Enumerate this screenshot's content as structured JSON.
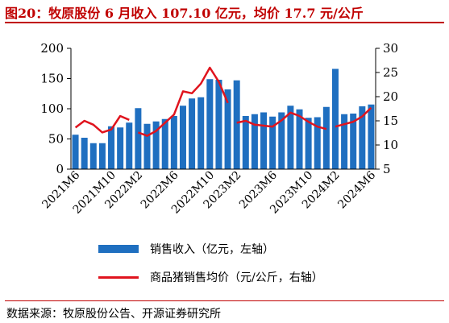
{
  "figure": {
    "title": "图20：牧原股份 6 月收入 107.10 亿元，均价 17.7 元/公斤",
    "source": "数据来源：牧原股份公告、开源证券研究所"
  },
  "chart_data": {
    "type": "bar+line",
    "x": [
      "2021M6",
      "2021M7",
      "2021M8",
      "2021M9",
      "2021M10",
      "2021M11",
      "2021M12",
      "2022M2",
      "2022M3",
      "2022M4",
      "2022M5",
      "2022M6",
      "2022M7",
      "2022M8",
      "2022M9",
      "2022M10",
      "2022M11",
      "2022M12",
      "2023M2",
      "2023M3",
      "2023M4",
      "2023M5",
      "2023M6",
      "2023M7",
      "2023M8",
      "2023M9",
      "2023M10",
      "2023M11",
      "2023M12",
      "2024M2",
      "2024M3",
      "2024M4",
      "2024M5",
      "2024M6"
    ],
    "xtick_labels": [
      "2021M6",
      "2021M10",
      "2022M2",
      "2022M6",
      "2022M10",
      "2023M2",
      "2023M6",
      "2023M10",
      "2024M2",
      "2024M6"
    ],
    "series": [
      {
        "name": "销售收入（亿元，左轴）",
        "type": "bar",
        "axis": "left",
        "color": "#1f6fc0",
        "values": [
          57,
          52,
          43,
          43,
          71,
          69,
          77,
          101,
          75,
          79,
          83,
          88,
          105,
          117,
          119,
          149,
          148,
          132,
          147,
          88,
          91,
          94,
          87,
          94,
          105,
          99,
          85,
          86,
          103,
          166,
          91,
          92,
          104,
          107
        ]
      },
      {
        "name": "商品猪销售均价（元/公斤，右轴）",
        "type": "line",
        "axis": "right",
        "color": "#e0141e",
        "values": [
          13.6,
          15.0,
          14.2,
          12.6,
          13.2,
          16.0,
          15.2,
          12.6,
          11.9,
          12.9,
          14.6,
          16.3,
          21.1,
          20.7,
          22.7,
          26.0,
          23.1,
          18.7,
          14.6,
          15.0,
          14.2,
          14.0,
          13.8,
          15.1,
          16.7,
          16.0,
          14.8,
          13.8,
          13.3,
          13.8,
          14.3,
          14.8,
          15.9,
          17.7
        ]
      }
    ],
    "ylim_left": [
      0,
      200
    ],
    "yticks_left": [
      0,
      50,
      100,
      150,
      200
    ],
    "ylim_right": [
      5,
      30
    ],
    "yticks_right": [
      5,
      10,
      15,
      20,
      25,
      30
    ],
    "grid": false,
    "legend_position": "bottom"
  }
}
